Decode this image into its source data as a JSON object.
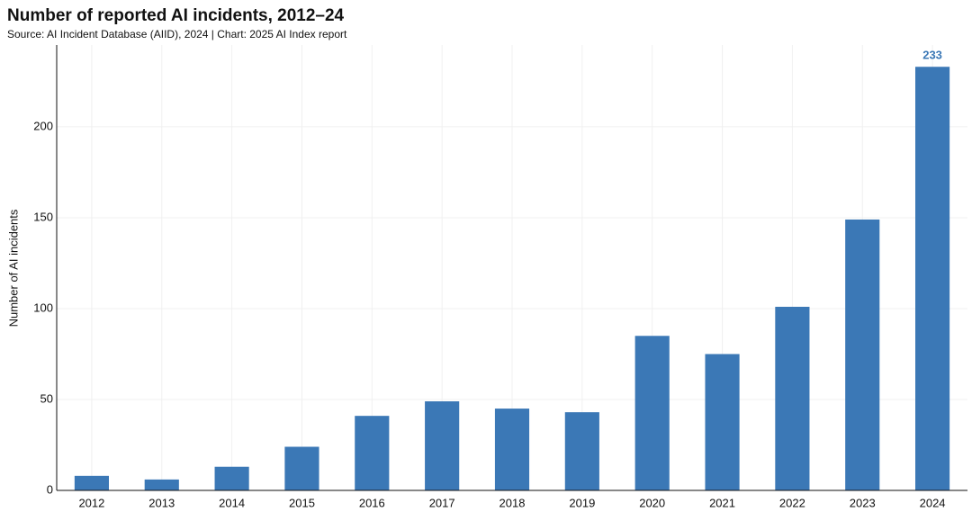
{
  "chart_data": {
    "type": "bar",
    "title": "Number of reported AI incidents, 2012–24",
    "subtitle": "Source: AI Incident Database (AIID), 2024 | Chart: 2025 AI Index report",
    "y_label": "Number of AI incidents",
    "categories": [
      "2012",
      "2013",
      "2014",
      "2015",
      "2016",
      "2017",
      "2018",
      "2019",
      "2020",
      "2021",
      "2022",
      "2023",
      "2024"
    ],
    "values": [
      8,
      6,
      13,
      24,
      41,
      49,
      45,
      43,
      85,
      75,
      101,
      149,
      233
    ],
    "value_label_index": 12,
    "color": "#3b78b6",
    "ylim": [
      0,
      245
    ],
    "yticks": [
      0,
      50,
      100,
      150,
      200
    ],
    "grid": true
  }
}
